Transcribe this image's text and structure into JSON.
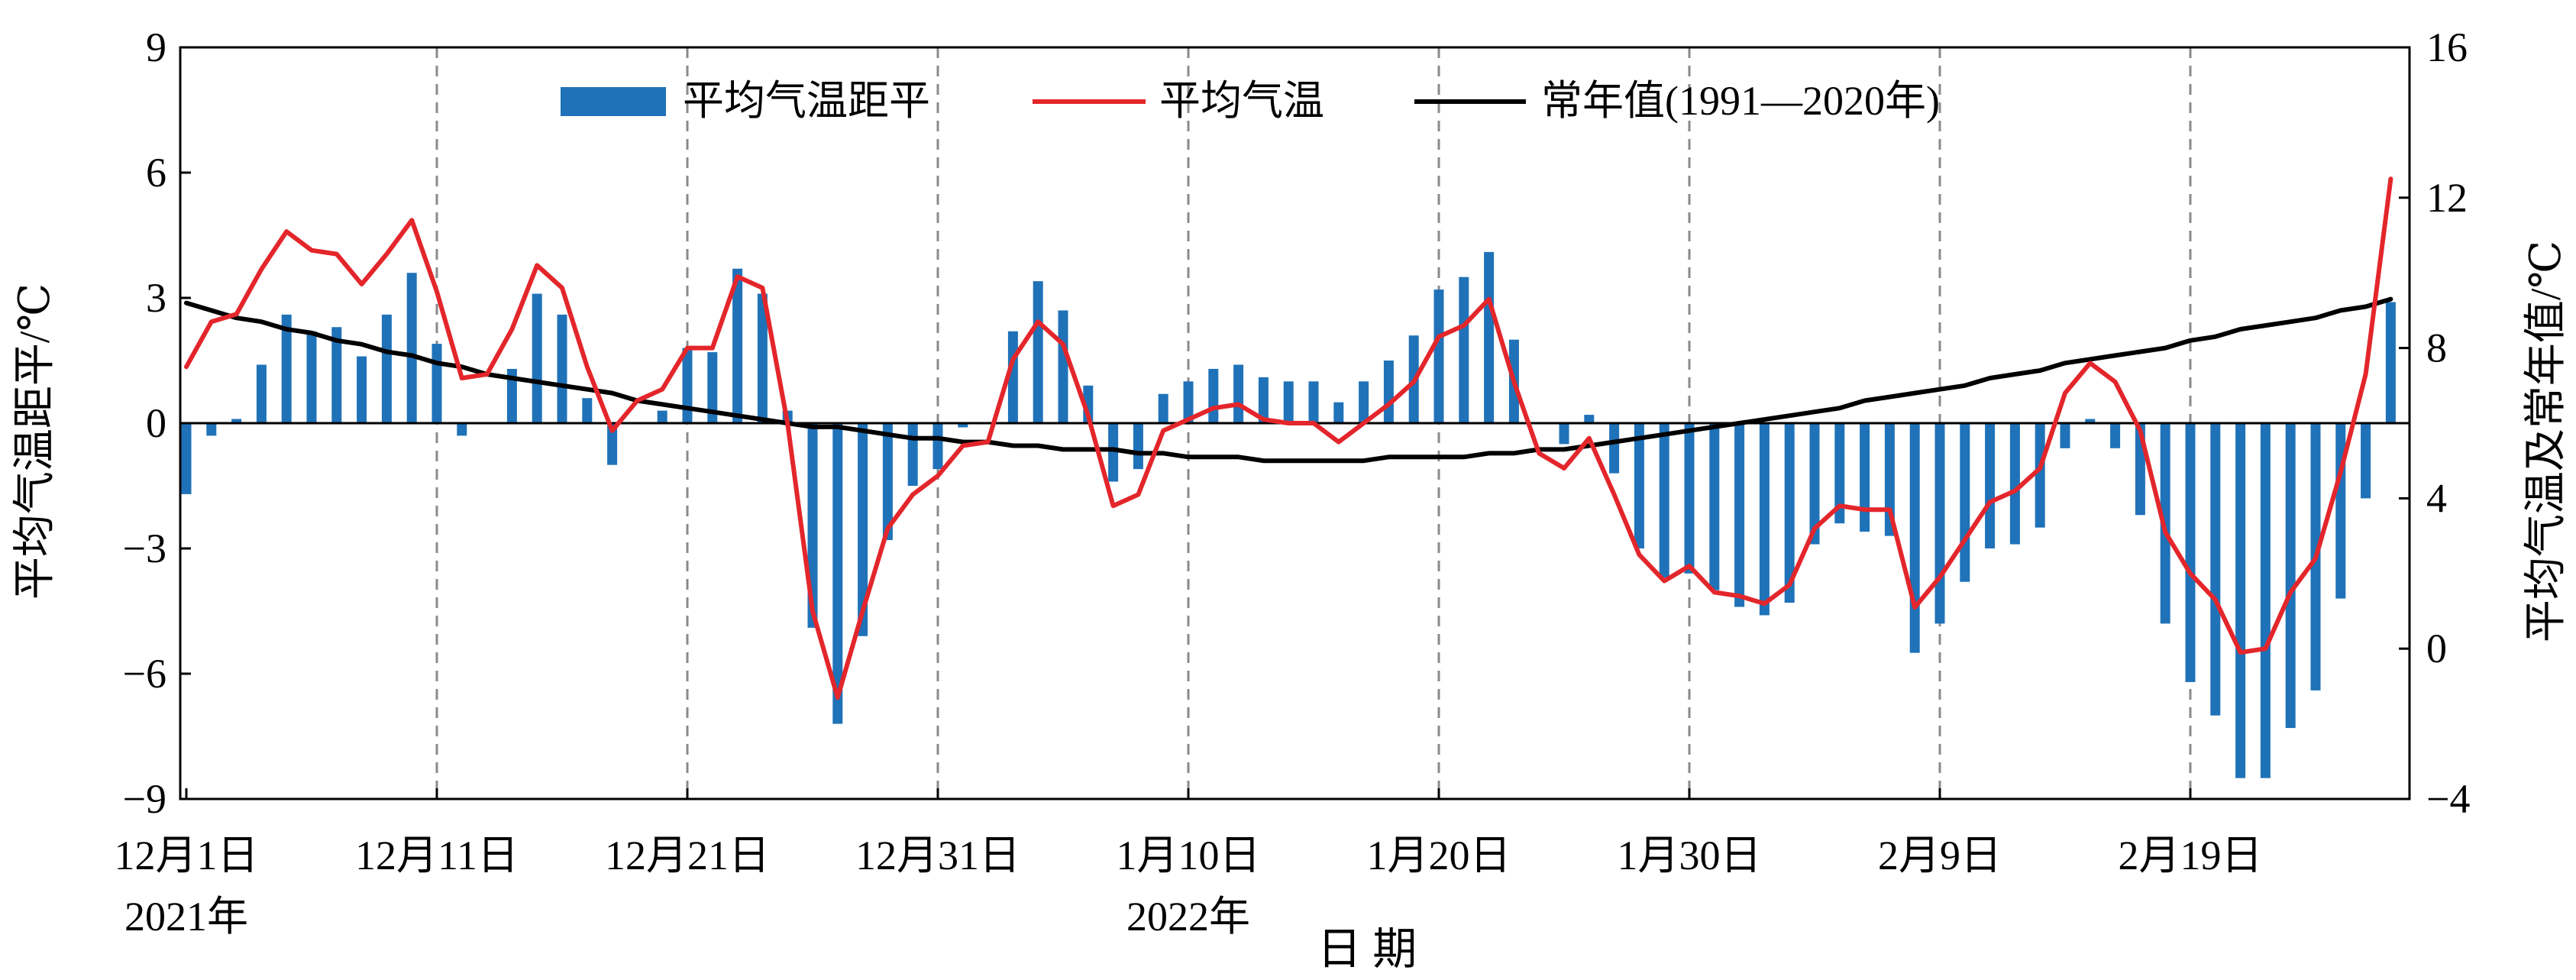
{
  "chart_data": {
    "type": "bar+line",
    "xlabel": "日 期",
    "ylabel_left": "平均气温距平/℃",
    "ylabel_right": "平均气温及常年值/℃",
    "ylim_left": [
      -9,
      9
    ],
    "yticks_left": [
      -9,
      -6,
      -3,
      0,
      3,
      6,
      9
    ],
    "ylim_right": [
      -4,
      16
    ],
    "yticks_right": [
      -4,
      0,
      4,
      8,
      12,
      16
    ],
    "grid": "vertical dashed lines at 10-day ticks",
    "legend_position": "top-center",
    "x_tick_labels": [
      "12月1日",
      "12月11日",
      "12月21日",
      "12月31日",
      "1月10日",
      "1月20日",
      "1月30日",
      "2月9日",
      "2月19日"
    ],
    "year_labels": [
      "2021年",
      "2022年"
    ],
    "series": [
      {
        "name": "平均气温距平",
        "kind": "bar",
        "axis": "left",
        "color": "#1f72b8",
        "values": [
          -1.7,
          -0.3,
          0.1,
          1.4,
          2.6,
          2.2,
          2.3,
          1.6,
          2.6,
          3.6,
          1.9,
          -0.3,
          0.0,
          1.3,
          3.1,
          2.6,
          0.6,
          -1.0,
          0.0,
          0.3,
          1.8,
          1.7,
          3.7,
          3.1,
          0.3,
          -4.9,
          -7.2,
          -5.1,
          -2.8,
          -1.5,
          -1.1,
          -0.1,
          0.0,
          2.2,
          3.4,
          2.7,
          0.9,
          -1.4,
          -1.1,
          0.7,
          1.0,
          1.3,
          1.4,
          1.1,
          1.0,
          1.0,
          0.5,
          1.0,
          1.5,
          2.1,
          3.2,
          3.5,
          4.1,
          2.0,
          0.0,
          -0.5,
          0.2,
          -1.2,
          -3.0,
          -3.7,
          -3.6,
          -4.0,
          -4.4,
          -4.6,
          -4.3,
          -2.9,
          -2.4,
          -2.6,
          -2.7,
          -5.5,
          -4.8,
          -3.8,
          -3.0,
          -2.9,
          -2.5,
          -0.6,
          0.1,
          -0.6,
          -2.2,
          -4.8,
          -6.2,
          -7.0,
          -8.5,
          -8.5,
          -7.3,
          -6.4,
          -4.2,
          -1.8,
          2.9
        ]
      },
      {
        "name": "平均气温",
        "kind": "line",
        "axis": "right",
        "color": "#e3262b",
        "values": [
          7.5,
          8.7,
          8.9,
          10.1,
          11.1,
          10.6,
          10.5,
          9.7,
          10.5,
          11.4,
          9.5,
          7.2,
          7.3,
          8.5,
          10.2,
          9.6,
          7.5,
          5.8,
          6.6,
          6.9,
          8.0,
          8.0,
          9.9,
          9.6,
          6.0,
          1.0,
          -1.3,
          1.0,
          3.2,
          4.1,
          4.6,
          5.4,
          5.5,
          7.7,
          8.7,
          8.1,
          6.2,
          3.8,
          4.1,
          5.8,
          6.1,
          6.4,
          6.5,
          6.1,
          6.0,
          6.0,
          5.5,
          6.0,
          6.5,
          7.1,
          8.3,
          8.6,
          9.3,
          7.1,
          5.2,
          4.8,
          5.6,
          4.1,
          2.5,
          1.8,
          2.2,
          1.5,
          1.4,
          1.2,
          1.7,
          3.2,
          3.8,
          3.7,
          3.7,
          1.1,
          1.9,
          2.9,
          3.9,
          4.2,
          4.8,
          6.8,
          7.6,
          7.1,
          5.8,
          3.1,
          2.0,
          1.3,
          -0.1,
          0.0,
          1.5,
          2.4,
          4.7,
          7.3,
          12.5
        ]
      },
      {
        "name": "常年值(1991—2020年)",
        "kind": "line",
        "axis": "right",
        "color": "#000000",
        "values": [
          9.2,
          9.0,
          8.8,
          8.7,
          8.5,
          8.4,
          8.2,
          8.1,
          7.9,
          7.8,
          7.6,
          7.5,
          7.3,
          7.2,
          7.1,
          7.0,
          6.9,
          6.8,
          6.6,
          6.5,
          6.4,
          6.3,
          6.2,
          6.1,
          6.0,
          5.9,
          5.9,
          5.8,
          5.7,
          5.6,
          5.6,
          5.5,
          5.5,
          5.4,
          5.4,
          5.3,
          5.3,
          5.3,
          5.2,
          5.2,
          5.1,
          5.1,
          5.1,
          5.0,
          5.0,
          5.0,
          5.0,
          5.0,
          5.1,
          5.1,
          5.1,
          5.1,
          5.2,
          5.2,
          5.3,
          5.3,
          5.4,
          5.5,
          5.6,
          5.7,
          5.8,
          5.9,
          6.0,
          6.1,
          6.2,
          6.3,
          6.4,
          6.6,
          6.7,
          6.8,
          6.9,
          7.0,
          7.2,
          7.3,
          7.4,
          7.6,
          7.7,
          7.8,
          7.9,
          8.0,
          8.2,
          8.3,
          8.5,
          8.6,
          8.7,
          8.8,
          9.0,
          9.1,
          9.3
        ]
      }
    ]
  }
}
